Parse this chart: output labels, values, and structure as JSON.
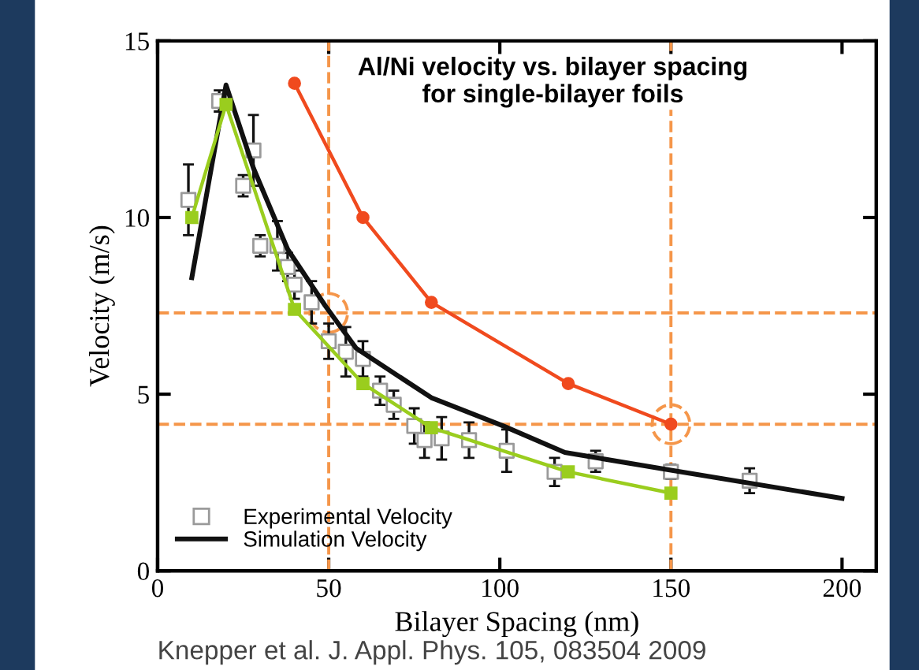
{
  "chart_data": {
    "type": "line",
    "title": "Al/Ni velocity vs. bilayer spacing\nfor single-bilayer foils",
    "xlabel": "Bilayer Spacing (nm)",
    "ylabel": "Velocity (m/s)",
    "annotations": [
      "Knepper et al. J. Appl. Phys. 105, 083504 2009"
    ],
    "xlim": [
      0,
      210
    ],
    "ylim": [
      0,
      15
    ],
    "xticks": [
      0,
      50,
      100,
      150,
      200
    ],
    "yticks": [
      0,
      5,
      10,
      15
    ],
    "grid": false,
    "legend": "bottom left",
    "series": [
      {
        "name": "Experimental Velocity",
        "type": "scatter",
        "marker": "square",
        "color": "#9a9a9a",
        "x": [
          9,
          18,
          28,
          25,
          30,
          35,
          38,
          40,
          45,
          50,
          55,
          60,
          65,
          69,
          75,
          78,
          83,
          91,
          102,
          116,
          128,
          150,
          173
        ],
        "values": [
          10.5,
          13.3,
          11.9,
          10.9,
          9.2,
          9.2,
          8.6,
          8.1,
          7.6,
          6.5,
          6.2,
          6.0,
          5.1,
          4.7,
          4.1,
          3.7,
          3.75,
          3.7,
          3.4,
          2.8,
          3.1,
          2.8,
          2.55
        ],
        "errors": [
          1.0,
          0.3,
          1.0,
          0.3,
          0.3,
          0.7,
          0.4,
          0.4,
          0.6,
          0.5,
          0.7,
          0.5,
          0.4,
          0.4,
          0.5,
          0.5,
          0.6,
          0.5,
          0.6,
          0.4,
          0.3,
          0.2,
          0.35
        ]
      },
      {
        "name": "Simulation Velocity",
        "marker": "none",
        "color": "#111111",
        "x": [
          10,
          20,
          28,
          38,
          49,
          58,
          80,
          101,
          119,
          150,
          200
        ],
        "values": [
          8.3,
          13.75,
          11.4,
          9.1,
          7.5,
          6.3,
          4.9,
          4.1,
          3.35,
          2.85,
          2.05
        ]
      },
      {
        "marker": "circle",
        "color": "#f04a1e",
        "x": [
          40,
          60,
          80,
          120,
          150
        ],
        "values": [
          13.8,
          10.0,
          7.6,
          5.3,
          4.15
        ]
      },
      {
        "marker": "square",
        "color": "#9acd1e",
        "x": [
          10,
          20,
          40,
          60,
          80,
          120,
          150
        ],
        "values": [
          10.0,
          13.2,
          7.4,
          5.3,
          4.05,
          2.8,
          2.2
        ]
      }
    ],
    "ref_lines": [
      {
        "axis": "y",
        "value": 7.3,
        "color": "#f5964a",
        "line_style": "dashed"
      },
      {
        "axis": "y",
        "value": 4.15,
        "color": "#f5964a",
        "line_style": "dashed"
      },
      {
        "axis": "x",
        "value": 50,
        "color": "#f5964a",
        "line_style": "dashed"
      },
      {
        "axis": "x",
        "value": 150,
        "color": "#f5964a",
        "line_style": "dashed"
      }
    ]
  }
}
